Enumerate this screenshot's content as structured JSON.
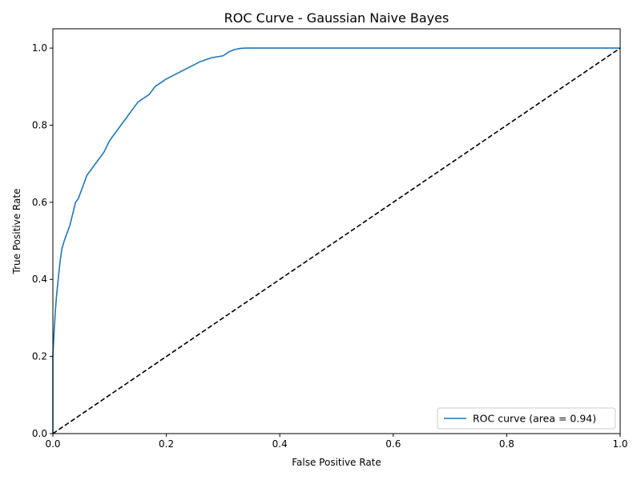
{
  "chart_data": {
    "type": "line",
    "title": "ROC Curve - Gaussian Naive Bayes",
    "xlabel": "False Positive Rate",
    "ylabel": "True Positive Rate",
    "xlim": [
      0.0,
      1.0
    ],
    "ylim": [
      0.0,
      1.05
    ],
    "xticks": [
      "0.0",
      "0.2",
      "0.4",
      "0.6",
      "0.8",
      "1.0"
    ],
    "yticks": [
      "0.0",
      "0.2",
      "0.4",
      "0.6",
      "0.8",
      "1.0"
    ],
    "grid": false,
    "legend_position": "lower-right",
    "series": [
      {
        "name": "ROC curve (area = 0.94)",
        "color": "#1f77b4",
        "style": "solid",
        "x": [
          0.0,
          0.0,
          0.002,
          0.004,
          0.006,
          0.008,
          0.01,
          0.013,
          0.016,
          0.02,
          0.025,
          0.03,
          0.035,
          0.04,
          0.045,
          0.05,
          0.06,
          0.07,
          0.08,
          0.09,
          0.1,
          0.11,
          0.12,
          0.13,
          0.14,
          0.15,
          0.16,
          0.17,
          0.18,
          0.19,
          0.2,
          0.22,
          0.24,
          0.26,
          0.28,
          0.3,
          0.31,
          0.32,
          0.33,
          0.34,
          0.36,
          0.4,
          0.5,
          0.6,
          0.7,
          0.8,
          0.9,
          1.0
        ],
        "y": [
          0.0,
          0.2,
          0.26,
          0.31,
          0.35,
          0.38,
          0.41,
          0.45,
          0.48,
          0.5,
          0.52,
          0.54,
          0.57,
          0.6,
          0.61,
          0.63,
          0.67,
          0.69,
          0.71,
          0.73,
          0.76,
          0.78,
          0.8,
          0.82,
          0.84,
          0.86,
          0.87,
          0.88,
          0.9,
          0.91,
          0.92,
          0.935,
          0.95,
          0.965,
          0.975,
          0.98,
          0.99,
          0.996,
          0.999,
          1.0,
          1.0,
          1.0,
          1.0,
          1.0,
          1.0,
          1.0,
          1.0,
          1.0
        ]
      },
      {
        "name": "",
        "color": "#000000",
        "style": "dashed",
        "x": [
          0.0,
          1.0
        ],
        "y": [
          0.0,
          1.0
        ]
      }
    ]
  }
}
